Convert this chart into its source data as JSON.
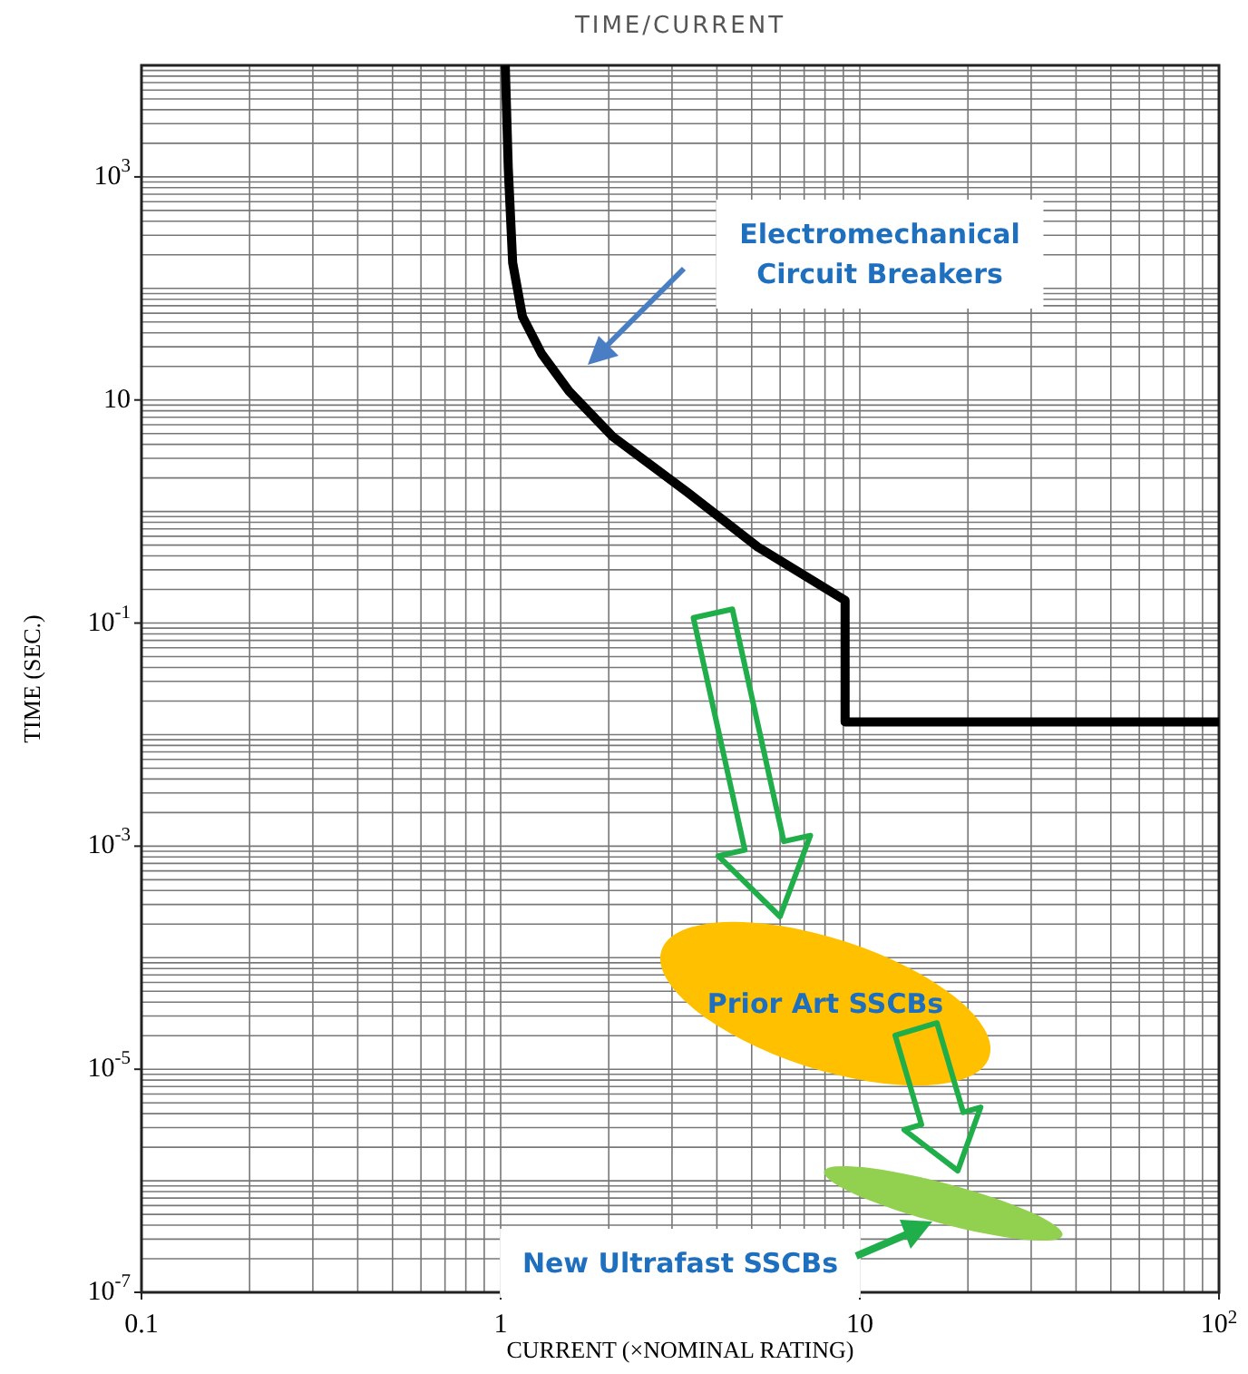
{
  "chart_data": {
    "type": "line",
    "title": "TIME/CURRENT",
    "xlabel": "CURRENT (×NOMINAL RATING)",
    "ylabel": "TIME (SEC.)",
    "log": "xy",
    "grid": true,
    "xlim": [
      0.1,
      100
    ],
    "xticks": [
      0.1,
      1,
      10,
      {
        "value": 100,
        "label": "10$^{2}$"
      }
    ],
    "ylim": [
      1e-07,
      10000
    ],
    "yticks": [
      {
        "value": 1e-07,
        "label": "10$^{-7}$"
      },
      {
        "value": 1e-05,
        "label": "10$^{-5}$"
      },
      {
        "value": 0.001,
        "label": "10$^{-3}$"
      },
      {
        "value": 0.1,
        "label": "10$^{-1}$"
      },
      10,
      {
        "value": 1000,
        "label": "10$^{3}$"
      }
    ],
    "series": [
      {
        "color": "#000000",
        "x": [
          1.03,
          1.05,
          1.08,
          1.15,
          1.3,
          1.55,
          2.05,
          3.3,
          5.2,
          9.1,
          9.1,
          100
        ],
        "values": [
          10000,
          1200,
          170,
          56,
          26,
          12,
          4.7,
          1.5,
          0.48,
          0.16,
          0.013,
          0.013
        ]
      }
    ],
    "annotations": [
      "Electromechanical Circuit Breakers",
      "Prior Art SSCBs",
      "New Ultrafast SSCBs"
    ]
  }
}
